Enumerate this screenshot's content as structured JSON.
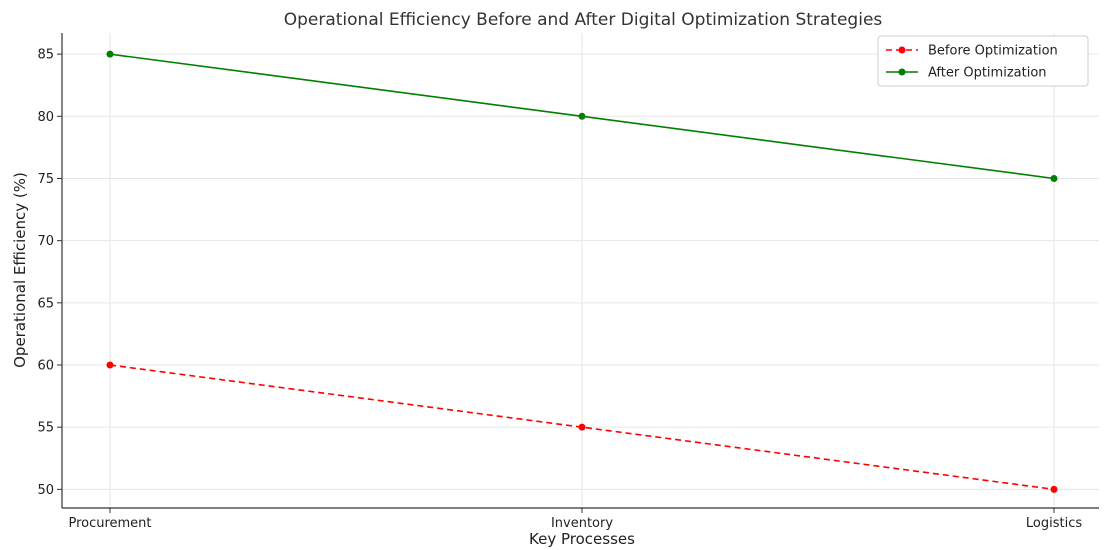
{
  "chart_data": {
    "type": "line",
    "title": "Operational Efficiency Before and After Digital Optimization Strategies",
    "xlabel": "Key Processes",
    "ylabel": "Operational Efficiency (%)",
    "categories": [
      "Procurement",
      "Inventory",
      "Logistics"
    ],
    "ylim": [
      48.5,
      86.7
    ],
    "yticks": [
      50,
      55,
      60,
      65,
      70,
      75,
      80,
      85
    ],
    "grid": true,
    "legend_position": "top-right",
    "series": [
      {
        "name": "Before Optimization",
        "values": [
          60,
          55,
          50
        ],
        "color": "#ff0000",
        "line_style": "dashed",
        "marker": "circle"
      },
      {
        "name": "After Optimization",
        "values": [
          85,
          80,
          75
        ],
        "color": "#007f00",
        "line_style": "solid",
        "marker": "circle"
      }
    ]
  }
}
